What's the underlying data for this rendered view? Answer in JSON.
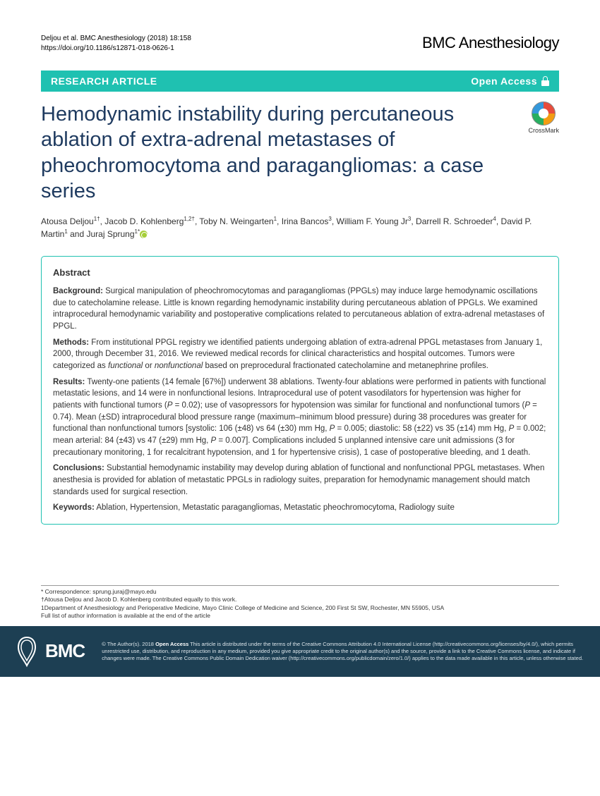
{
  "header": {
    "citation": "Deljou et al. BMC Anesthesiology        (2018) 18:158",
    "doi": "https://doi.org/10.1186/s12871-018-0626-1",
    "journal": "BMC Anesthesiology"
  },
  "banner": {
    "left": "RESEARCH ARTICLE",
    "right": "Open Access"
  },
  "crossmark_label": "CrossMark",
  "title": "Hemodynamic instability during percutaneous ablation of extra-adrenal metastases of pheochromocytoma and paragangliomas: a case series",
  "authors_html": "Atousa Deljou<sup>1†</sup>, Jacob D. Kohlenberg<sup>1,2†</sup>, Toby N. Weingarten<sup>1</sup>, Irina Bancos<sup>3</sup>, William F. Young Jr<sup>3</sup>, Darrell R. Schroeder<sup>4</sup>, David P. Martin<sup>1</sup> and Juraj Sprung<sup>1*</sup>",
  "abstract": {
    "heading": "Abstract",
    "background_label": "Background:",
    "background": " Surgical manipulation of pheochromocytomas and paragangliomas (PPGLs) may induce large hemodynamic oscillations due to catecholamine release. Little is known regarding hemodynamic instability during percutaneous ablation of PPGLs. We examined intraprocedural hemodynamic variability and postoperative complications related to percutaneous ablation of extra-adrenal metastases of PPGL.",
    "methods_label": "Methods:",
    "methods": " From institutional PPGL registry we identified patients undergoing ablation of extra-adrenal PPGL metastases from January 1, 2000, through December 31, 2016. We reviewed medical records for clinical characteristics and hospital outcomes. Tumors were categorized as <em>functional</em> or <em>nonfunctional</em> based on preprocedural fractionated catecholamine and metanephrine profiles.",
    "results_label": "Results:",
    "results": " Twenty-one patients (14 female [67%]) underwent 38 ablations. Twenty-four ablations were performed in patients with functional metastatic lesions, and 14 were in nonfunctional lesions. Intraprocedural use of potent vasodilators for hypertension was higher for patients with functional tumors (<em>P</em> = 0.02); use of vasopressors for hypotension was similar for functional and nonfunctional tumors (<em>P</em> = 0.74). Mean (±SD) intraprocedural blood pressure range (maximum–minimum blood pressure) during 38 procedures was greater for functional than nonfunctional tumors [systolic: 106 (±48) vs 64 (±30) mm Hg, <em>P</em> = 0.005; diastolic: 58 (±22) vs 35 (±14) mm Hg, <em>P</em> = 0.002; mean arterial: 84 (±43) vs 47 (±29) mm Hg, <em>P</em> = 0.007]. Complications included 5 unplanned intensive care unit admissions (3 for precautionary monitoring, 1 for recalcitrant hypotension, and 1 for hypertensive crisis), 1 case of postoperative bleeding, and 1 death.",
    "conclusions_label": "Conclusions:",
    "conclusions": " Substantial hemodynamic instability may develop during ablation of functional and nonfunctional PPGL metastases. When anesthesia is provided for ablation of metastatic PPGLs in radiology suites, preparation for hemodynamic management should match standards used for surgical resection.",
    "keywords_label": "Keywords:",
    "keywords": " Ablation, Hypertension, Metastatic paragangliomas, Metastatic pheochromocytoma, Radiology suite"
  },
  "footer_notes": {
    "correspondence": "* Correspondence: sprung.juraj@mayo.edu",
    "equal": "†Atousa Deljou and Jacob D. Kohlenberg contributed equally to this work.",
    "affil1": "1Department of Anesthesiology and Perioperative Medicine, Mayo Clinic College of Medicine and Science, 200 First St SW, Rochester, MN 55905, USA",
    "full_list": "Full list of author information is available at the end of the article"
  },
  "license": {
    "bmc": "BMC",
    "text": "© The Author(s). 2018 <strong>Open Access</strong> This article is distributed under the terms of the Creative Commons Attribution 4.0 International License (http://creativecommons.org/licenses/by/4.0/), which permits unrestricted use, distribution, and reproduction in any medium, provided you give appropriate credit to the original author(s) and the source, provide a link to the Creative Commons license, and indicate if changes were made. The Creative Commons Public Domain Dedication waiver (http://creativecommons.org/publicdomain/zero/1.0/) applies to the data made available in this article, unless otherwise stated."
  }
}
